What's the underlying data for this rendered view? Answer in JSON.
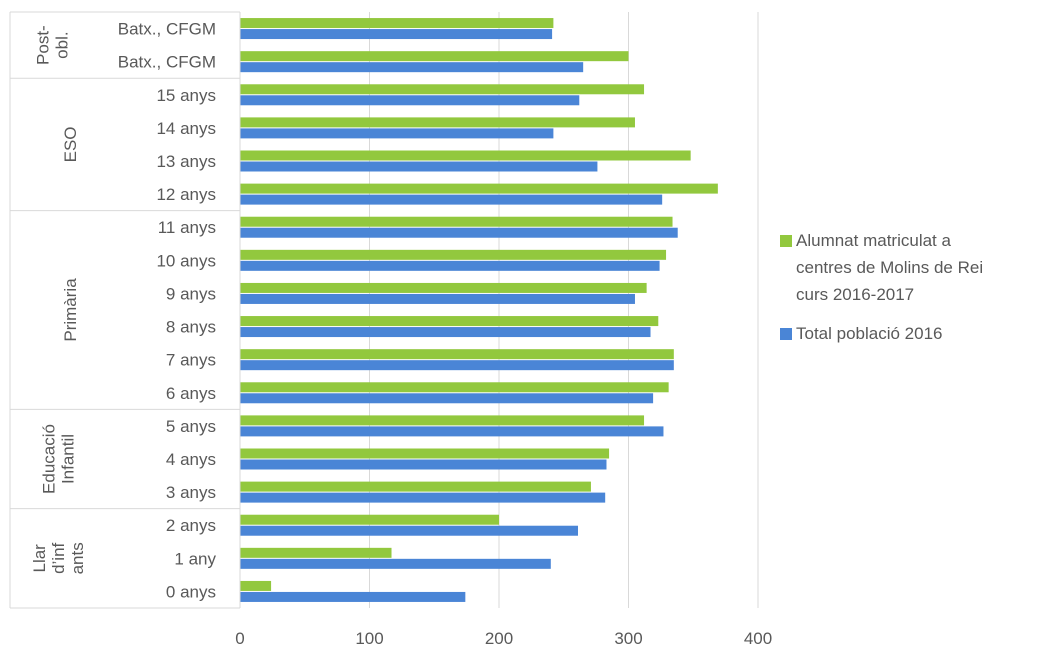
{
  "chart_data": {
    "type": "bar",
    "orientation": "horizontal",
    "categories": [
      "0 anys",
      "1 any",
      "2 anys",
      "3 anys",
      "4 anys",
      "5 anys",
      "6 anys",
      "7 anys",
      "8 anys",
      "9 anys",
      "10 anys",
      "11 anys",
      "12 anys",
      "13 anys",
      "14 anys",
      "15 anys",
      "Batx., CFGM",
      "Batx., CFGM"
    ],
    "groups": [
      {
        "name": "Llar d'inf ants",
        "lines": [
          "Llar",
          "d’inf",
          "ants"
        ],
        "start": 0,
        "end": 2
      },
      {
        "name": "Educació Infantil",
        "lines": [
          "Educació",
          "Infantil"
        ],
        "start": 3,
        "end": 5
      },
      {
        "name": "Primària",
        "lines": [
          "Primària"
        ],
        "start": 6,
        "end": 11
      },
      {
        "name": "ESO",
        "lines": [
          "ESO"
        ],
        "start": 12,
        "end": 15
      },
      {
        "name": "Post-obl.",
        "lines": [
          "Post-",
          "obl."
        ],
        "start": 16,
        "end": 17
      }
    ],
    "series": [
      {
        "name": "Alumnat matriculat a centres de Molins de Rei curs 2016-2017",
        "legend_lines": [
          "Alumnat matriculat a",
          "centres de Molins de Rei",
          "curs 2016-2017"
        ],
        "color": "#92c83e",
        "values": [
          24,
          117,
          200,
          271,
          285,
          312,
          331,
          335,
          323,
          314,
          329,
          334,
          369,
          348,
          305,
          312,
          300,
          242
        ]
      },
      {
        "name": "Total població 2016",
        "legend_lines": [
          "Total població 2016"
        ],
        "color": "#4a85d6",
        "values": [
          174,
          240,
          261,
          282,
          283,
          327,
          319,
          335,
          317,
          305,
          324,
          338,
          326,
          276,
          242,
          262,
          265,
          241
        ]
      }
    ],
    "xlim": [
      0,
      400
    ],
    "xticks": [
      0,
      100,
      200,
      300,
      400
    ],
    "xticklabels": [
      "0",
      "100",
      "200",
      "300",
      "400"
    ],
    "grid": true,
    "legend_position": "right"
  }
}
